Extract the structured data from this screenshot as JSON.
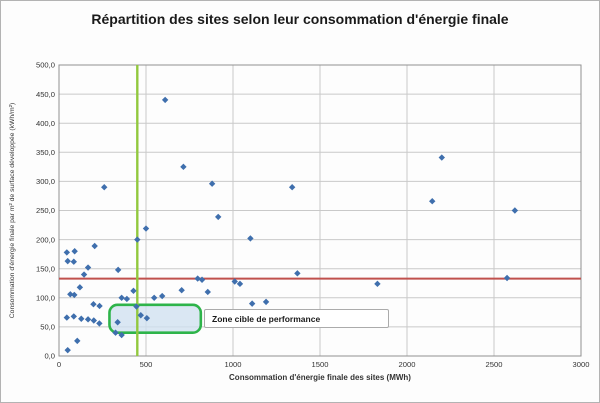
{
  "title": "Répartition des sites selon leur consommation d'énergie finale",
  "colors": {
    "point": "#3f6fad",
    "red_line": "#c0504d",
    "green_line": "#92c83e",
    "zone_fill": "#cfe0f0",
    "zone_border": "#2eb44a",
    "grid": "#c9c9c9",
    "plot_border": "#919191",
    "tick_text": "#333333"
  },
  "chart_data": {
    "type": "scatter",
    "title": "Répartition des sites selon leur consommation d'énergie finale",
    "xlabel": "Consommation d'énergie finale des sites (MWh)",
    "ylabel": "Consommation d'énergie finale par m² de surface développée (kWh/m²)",
    "xlim": [
      0,
      3000
    ],
    "ylim": [
      0,
      500
    ],
    "x_ticks": [
      0,
      500,
      1000,
      1500,
      2000,
      2500,
      3000
    ],
    "y_ticks": [
      0,
      50,
      100,
      150,
      200,
      250,
      300,
      350,
      400,
      450,
      500
    ],
    "grid": true,
    "legend": "none",
    "reference_lines": {
      "horizontal_y": 133,
      "vertical_x": 450
    },
    "target_zone": {
      "x0": 290,
      "x1": 815,
      "y0": 40,
      "y1": 88,
      "label": "Zone cible de performance"
    },
    "points": [
      [
        50,
        10
      ],
      [
        105,
        26
      ],
      [
        45,
        66
      ],
      [
        85,
        68
      ],
      [
        128,
        64
      ],
      [
        167,
        63
      ],
      [
        200,
        61
      ],
      [
        232,
        56
      ],
      [
        325,
        40
      ],
      [
        360,
        36
      ],
      [
        337,
        58
      ],
      [
        445,
        85
      ],
      [
        470,
        70
      ],
      [
        505,
        65
      ],
      [
        198,
        89
      ],
      [
        233,
        86
      ],
      [
        65,
        106
      ],
      [
        88,
        105
      ],
      [
        120,
        118
      ],
      [
        144,
        140
      ],
      [
        45,
        178
      ],
      [
        90,
        180
      ],
      [
        50,
        163
      ],
      [
        85,
        162
      ],
      [
        167,
        152
      ],
      [
        205,
        189
      ],
      [
        340,
        148
      ],
      [
        360,
        100
      ],
      [
        390,
        98
      ],
      [
        428,
        112
      ],
      [
        547,
        100
      ],
      [
        593,
        103
      ],
      [
        705,
        113
      ],
      [
        855,
        110
      ],
      [
        797,
        133
      ],
      [
        822,
        131
      ],
      [
        1010,
        128
      ],
      [
        1040,
        124
      ],
      [
        1110,
        90
      ],
      [
        1190,
        93
      ],
      [
        1100,
        202
      ],
      [
        915,
        239
      ],
      [
        500,
        219
      ],
      [
        450,
        200
      ],
      [
        260,
        290
      ],
      [
        880,
        296
      ],
      [
        715,
        325
      ],
      [
        610,
        440
      ],
      [
        1340,
        290
      ],
      [
        1370,
        142
      ],
      [
        1830,
        124
      ],
      [
        2200,
        341
      ],
      [
        2145,
        266
      ],
      [
        2620,
        250
      ],
      [
        2575,
        134
      ]
    ]
  }
}
